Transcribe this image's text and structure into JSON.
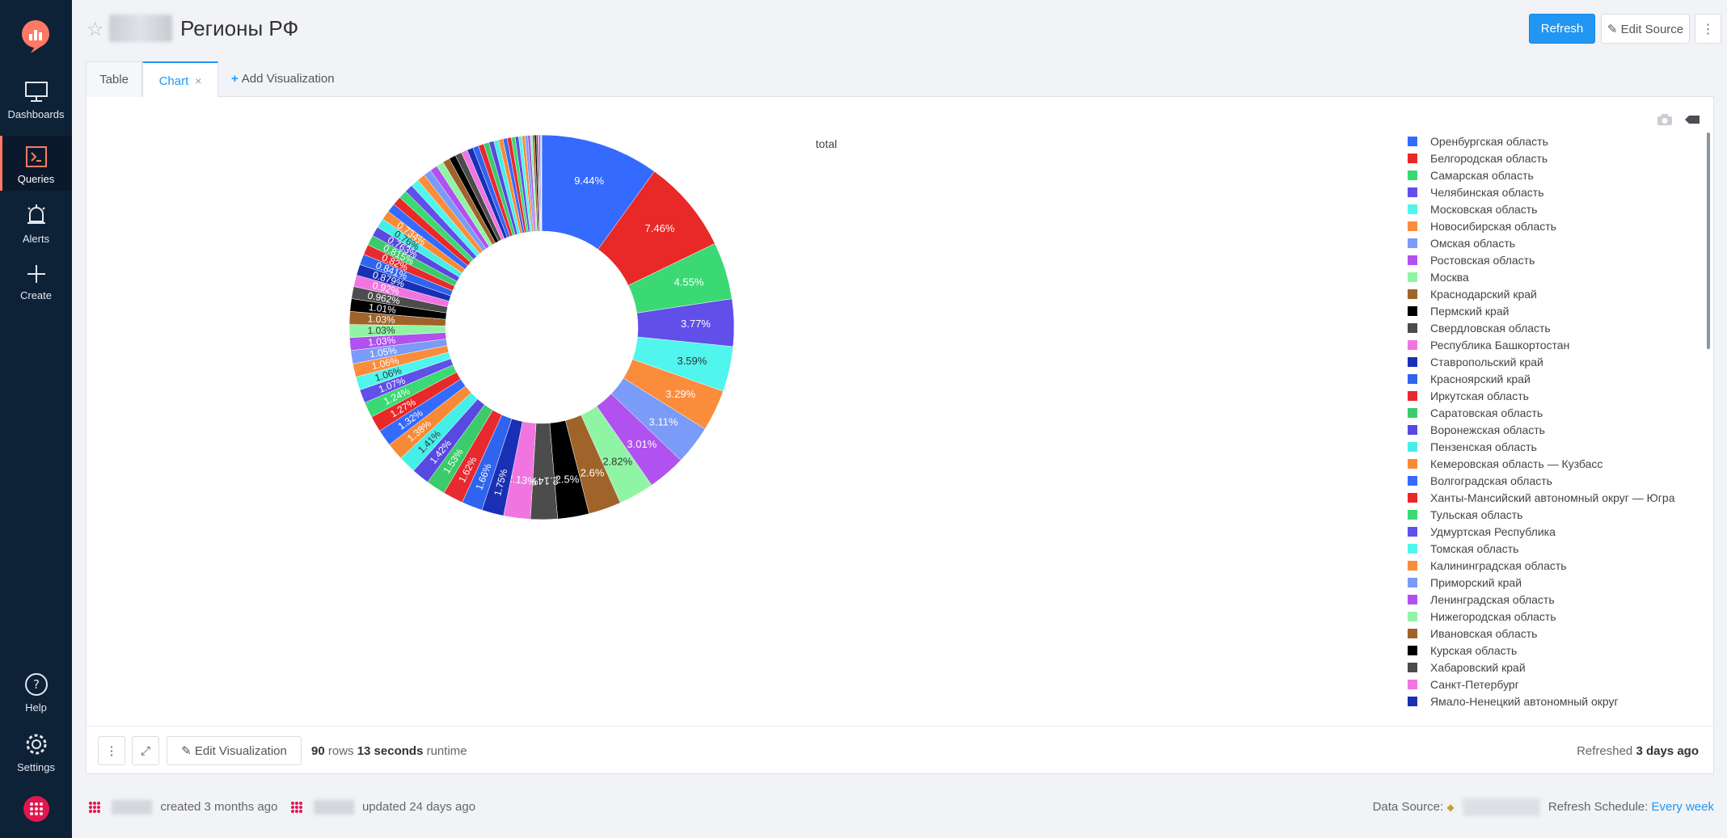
{
  "sidebar": {
    "items": [
      {
        "label": "Dashboards",
        "icon": "desktop-icon"
      },
      {
        "label": "Queries",
        "icon": "terminal-icon"
      },
      {
        "label": "Alerts",
        "icon": "bell-icon"
      },
      {
        "label": "Create",
        "icon": "plus-icon"
      },
      {
        "label": "Help",
        "icon": "question-icon"
      },
      {
        "label": "Settings",
        "icon": "gear-icon"
      }
    ],
    "accent": "#ff7964"
  },
  "header": {
    "title": "Регионы РФ",
    "refresh_label": "Refresh",
    "edit_source_label": "Edit Source",
    "more_label": "⋮"
  },
  "tabs": {
    "table_label": "Table",
    "chart_label": "Chart",
    "close_label": "×",
    "add_label": "Add Visualization"
  },
  "footer": {
    "edit_vis_label": "Edit Visualization",
    "rows": "90",
    "rows_word": "rows",
    "runtime": "13 seconds",
    "runtime_word": "runtime",
    "refreshed_prefix": "Refreshed",
    "refreshed_value": "3 days ago"
  },
  "meta": {
    "created": "created 3 months ago",
    "updated": "updated 24 days ago",
    "data_source_label": "Data Source:",
    "refresh_schedule_label": "Refresh Schedule:",
    "refresh_schedule_value": "Every week"
  },
  "colors": {
    "primary": "#2196f3",
    "sidebar_bg": "#0d2137"
  },
  "chart_data": {
    "type": "pie",
    "title": "total",
    "hole": 0.5,
    "palette": [
      "#356aff",
      "#e92828",
      "#3bd973",
      "#604fe9",
      "#50f5ed",
      "#fb8c3b",
      "#7a9bf7",
      "#b051f0",
      "#8ff5a5",
      "#a0632a",
      "#000000",
      "#4c4c4c",
      "#f075e0",
      "#1930b4",
      "#2f64ef",
      "#e72a30",
      "#3ccb6a",
      "#5849e0",
      "#44efe8",
      "#f88a36"
    ],
    "slices": [
      {
        "label": "Оренбургская область",
        "value": 9.44
      },
      {
        "label": "Белгородская область",
        "value": 7.46
      },
      {
        "label": "Самарская область",
        "value": 4.55
      },
      {
        "label": "Челябинская область",
        "value": 3.77
      },
      {
        "label": "Московская область",
        "value": 3.59
      },
      {
        "label": "Новосибирская область",
        "value": 3.29
      },
      {
        "label": "Омская область",
        "value": 3.11
      },
      {
        "label": "Ростовская область",
        "value": 3.01
      },
      {
        "label": "Москва",
        "value": 2.82
      },
      {
        "label": "Краснодарский край",
        "value": 2.6
      },
      {
        "label": "Пермский край",
        "value": 2.5
      },
      {
        "label": "Свердловская область",
        "value": 2.14
      },
      {
        "label": "Республика Башкортостан",
        "value": 2.13
      },
      {
        "label": "Ставропольский край",
        "value": 1.75
      },
      {
        "label": "Красноярский край",
        "value": 1.66
      },
      {
        "label": "Иркутская область",
        "value": 1.62
      },
      {
        "label": "Саратовская область",
        "value": 1.53
      },
      {
        "label": "Воронежская область",
        "value": 1.42
      },
      {
        "label": "Пензенская область",
        "value": 1.41
      },
      {
        "label": "Кемеровская область — Кузбасс",
        "value": 1.38
      },
      {
        "label": "Волгоградская область",
        "value": 1.32
      },
      {
        "label": "Ханты-Мансийский автономный округ — Югра",
        "value": 1.27
      },
      {
        "label": "Тульская область",
        "value": 1.24
      },
      {
        "label": "Удмуртская Республика",
        "value": 1.07
      },
      {
        "label": "Томская область",
        "value": 1.06
      },
      {
        "label": "Калининградская область",
        "value": 1.06
      },
      {
        "label": "Приморский край",
        "value": 1.05
      },
      {
        "label": "Ленинградская область",
        "value": 1.03
      },
      {
        "label": "Нижегородская область",
        "value": 1.03
      },
      {
        "label": "Ивановская область",
        "value": 1.03
      },
      {
        "label": "Курская область",
        "value": 1.01
      },
      {
        "label": "Хабаровский край",
        "value": 0.962
      },
      {
        "label": "Санкт-Петербург",
        "value": 0.92
      },
      {
        "label": "Ямало-Ненецкий автономный округ",
        "value": 0.879
      },
      {
        "label": "",
        "value": 0.841
      },
      {
        "label": "",
        "value": 0.82
      },
      {
        "label": "",
        "value": 0.815
      },
      {
        "label": "",
        "value": 0.763
      },
      {
        "label": "",
        "value": 0.76
      },
      {
        "label": "",
        "value": 0.734
      },
      {
        "label": "",
        "value": 0.714
      },
      {
        "label": "",
        "value": 0.7
      },
      {
        "label": "",
        "value": 0.669
      },
      {
        "label": "",
        "value": 0.658
      },
      {
        "label": "",
        "value": 0.654
      },
      {
        "label": "",
        "value": 0.63
      },
      {
        "label": "",
        "value": 0.615
      },
      {
        "label": "",
        "value": 0.6
      },
      {
        "label": "",
        "value": 0.58
      },
      {
        "label": "",
        "value": 0.56
      },
      {
        "label": "",
        "value": 0.54
      },
      {
        "label": "",
        "value": 0.52
      },
      {
        "label": "",
        "value": 0.5
      },
      {
        "label": "",
        "value": 0.48
      },
      {
        "label": "",
        "value": 0.46
      },
      {
        "label": "",
        "value": 0.44
      },
      {
        "label": "",
        "value": 0.42
      },
      {
        "label": "",
        "value": 0.4
      },
      {
        "label": "",
        "value": 0.38
      },
      {
        "label": "",
        "value": 0.36
      },
      {
        "label": "",
        "value": 0.34
      },
      {
        "label": "",
        "value": 0.32
      },
      {
        "label": "",
        "value": 0.3
      },
      {
        "label": "",
        "value": 0.28
      },
      {
        "label": "",
        "value": 0.26
      },
      {
        "label": "",
        "value": 0.24
      },
      {
        "label": "",
        "value": 0.22
      },
      {
        "label": "",
        "value": 0.2
      },
      {
        "label": "",
        "value": 0.18
      },
      {
        "label": "",
        "value": 0.16
      },
      {
        "label": "",
        "value": 0.14
      },
      {
        "label": "",
        "value": 0.12
      },
      {
        "label": "",
        "value": 0.1
      },
      {
        "label": "",
        "value": 0.08
      },
      {
        "label": "",
        "value": 0.06
      },
      {
        "label": "",
        "value": 0.04
      },
      {
        "label": "",
        "value": 0.02
      }
    ]
  }
}
